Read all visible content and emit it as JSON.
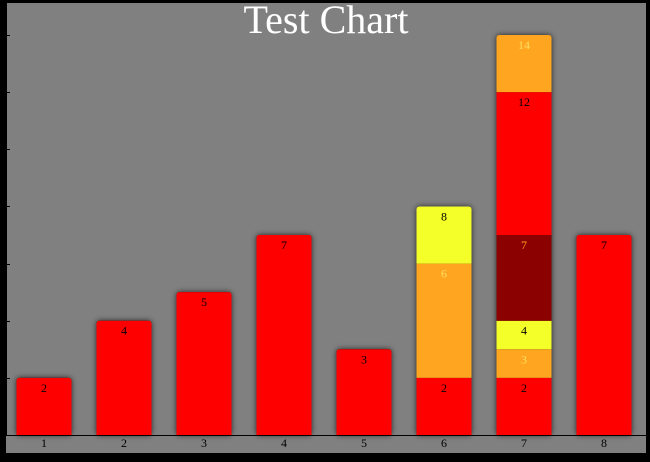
{
  "chart_data": {
    "type": "bar",
    "stacked": true,
    "title": "Test Chart",
    "xlabel": "",
    "ylabel": "",
    "categories": [
      "1",
      "2",
      "3",
      "4",
      "5",
      "6",
      "7",
      "8"
    ],
    "ylim": [
      0,
      14
    ],
    "ytick_step": 2,
    "y_tick_labels_shown": false,
    "grid": false,
    "legend": "none",
    "background_color": "#808080",
    "frame_color": "#000000",
    "stacks": [
      [
        {
          "value": 2,
          "label": "2",
          "color": "#ff0000",
          "label_color": "#000000"
        }
      ],
      [
        {
          "value": 4,
          "label": "4",
          "color": "#ff0000",
          "label_color": "#000000"
        }
      ],
      [
        {
          "value": 5,
          "label": "5",
          "color": "#ff0000",
          "label_color": "#000000"
        }
      ],
      [
        {
          "value": 7,
          "label": "7",
          "color": "#ff0000",
          "label_color": "#000000"
        }
      ],
      [
        {
          "value": 3,
          "label": "3",
          "color": "#ff0000",
          "label_color": "#000000"
        }
      ],
      [
        {
          "value": 2,
          "label": "2",
          "color": "#ff0000",
          "label_color": "#000000"
        },
        {
          "value": 4,
          "label": "6",
          "color": "#ffa520",
          "label_color": "#ffdf60"
        },
        {
          "value": 2,
          "label": "8",
          "color": "#f4ff2a",
          "label_color": "#000000"
        }
      ],
      [
        {
          "value": 2,
          "label": "2",
          "color": "#ff0000",
          "label_color": "#000000"
        },
        {
          "value": 1,
          "label": "3",
          "color": "#ffa520",
          "label_color": "#ffdf60"
        },
        {
          "value": 1,
          "label": "4",
          "color": "#f4ff2a",
          "label_color": "#000000"
        },
        {
          "value": 3,
          "label": "7",
          "color": "#8b0000",
          "label_color": "#ffa520"
        },
        {
          "value": 5,
          "label": "12",
          "color": "#ff0000",
          "label_color": "#000000"
        },
        {
          "value": 2,
          "label": "14",
          "color": "#ffa520",
          "label_color": "#ffdf60"
        }
      ],
      [
        {
          "value": 7,
          "label": "7",
          "color": "#ff0000",
          "label_color": "#000000"
        }
      ]
    ]
  }
}
